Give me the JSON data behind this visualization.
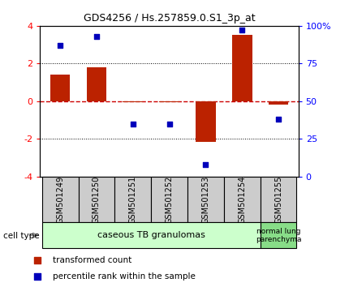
{
  "title": "GDS4256 / Hs.257859.0.S1_3p_at",
  "samples": [
    "GSM501249",
    "GSM501250",
    "GSM501251",
    "GSM501252",
    "GSM501253",
    "GSM501254",
    "GSM501255"
  ],
  "transformed_count": [
    1.4,
    1.8,
    -0.05,
    -0.05,
    -2.15,
    3.5,
    -0.2
  ],
  "percentile_rank": [
    87,
    93,
    35,
    35,
    8,
    97,
    38
  ],
  "ylim_left": [
    -4,
    4
  ],
  "ylim_right": [
    0,
    100
  ],
  "yticks_left": [
    -4,
    -2,
    0,
    2,
    4
  ],
  "yticks_right": [
    0,
    25,
    50,
    75,
    100
  ],
  "ytick_labels_right": [
    "0",
    "25",
    "50",
    "75",
    "100%"
  ],
  "bar_color": "#bb2200",
  "scatter_color": "#0000bb",
  "zero_line_color": "#cc0000",
  "dotted_line_color": "#000000",
  "group1_label": "caseous TB granulomas",
  "group2_label": "normal lung\nparenchyma",
  "group1_color": "#ccffcc",
  "group2_color": "#88dd88",
  "cell_type_label": "cell type",
  "legend_bar_label": "transformed count",
  "legend_scatter_label": "percentile rank within the sample",
  "bar_width": 0.55,
  "background_color": "#ffffff",
  "sample_box_color": "#cccccc",
  "title_fontsize": 9,
  "axis_fontsize": 8,
  "label_fontsize": 7,
  "group_fontsize": 8
}
